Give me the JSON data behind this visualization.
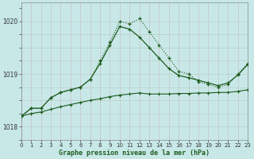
{
  "line1_x": [
    0,
    1,
    2,
    3,
    4,
    5,
    6,
    7,
    8,
    9,
    10,
    11,
    12,
    13,
    14,
    15,
    16,
    17,
    18,
    19,
    20,
    21,
    22,
    23
  ],
  "line1_y": [
    1018.2,
    1018.35,
    1018.35,
    1018.55,
    1018.65,
    1018.7,
    1018.75,
    1018.9,
    1019.25,
    1019.6,
    1020.0,
    1019.95,
    1020.05,
    1019.8,
    1019.55,
    1019.3,
    1019.05,
    1019.0,
    1018.85,
    1018.8,
    1018.75,
    1018.8,
    1019.0,
    1019.2
  ],
  "line2_x": [
    0,
    1,
    2,
    3,
    4,
    5,
    6,
    7,
    8,
    9,
    10,
    11,
    12,
    13,
    14,
    15,
    16,
    17,
    18,
    19,
    20,
    21,
    22,
    23
  ],
  "line2_y": [
    1018.2,
    1018.35,
    1018.35,
    1018.55,
    1018.65,
    1018.7,
    1018.75,
    1018.9,
    1019.2,
    1019.55,
    1019.9,
    1019.85,
    1019.7,
    1019.5,
    1019.3,
    1019.1,
    1018.97,
    1018.93,
    1018.88,
    1018.83,
    1018.78,
    1018.83,
    1018.98,
    1019.18
  ],
  "line3_x": [
    0,
    1,
    2,
    3,
    4,
    5,
    6,
    7,
    8,
    9,
    10,
    11,
    12,
    13,
    14,
    15,
    16,
    17,
    18,
    19,
    20,
    21,
    22,
    23
  ],
  "line3_y": [
    1018.2,
    1018.25,
    1018.28,
    1018.33,
    1018.38,
    1018.42,
    1018.46,
    1018.5,
    1018.53,
    1018.57,
    1018.6,
    1018.62,
    1018.64,
    1018.62,
    1018.62,
    1018.62,
    1018.63,
    1018.63,
    1018.64,
    1018.64,
    1018.65,
    1018.65,
    1018.67,
    1018.7
  ],
  "line_color": "#1e5c1e",
  "bg_color": "#c8e8e8",
  "grid_color_v": "#c0b8b8",
  "grid_color_h": "#b8c8b8",
  "xlabel": "Graphe pression niveau de la mer (hPa)",
  "ylim": [
    1017.75,
    1020.35
  ],
  "xlim": [
    0,
    23
  ],
  "yticks": [
    1018,
    1019,
    1020
  ],
  "xticks": [
    0,
    1,
    2,
    3,
    4,
    5,
    6,
    7,
    8,
    9,
    10,
    11,
    12,
    13,
    14,
    15,
    16,
    17,
    18,
    19,
    20,
    21,
    22,
    23
  ]
}
